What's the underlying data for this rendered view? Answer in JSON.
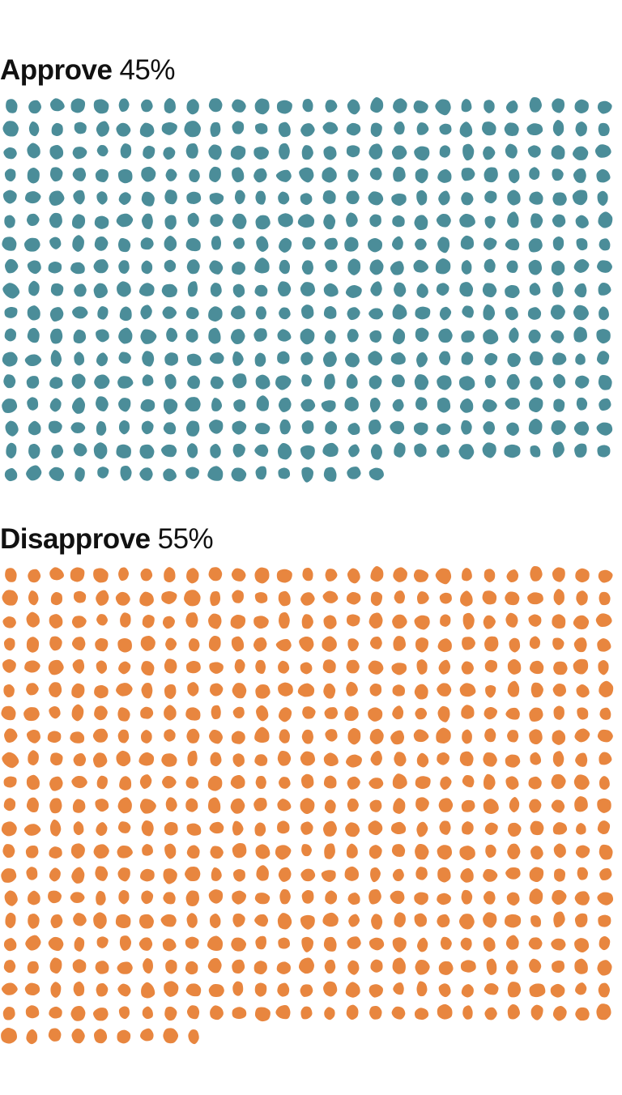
{
  "chart_data": {
    "type": "waffle",
    "groups": [
      {
        "label": "Approve",
        "percent_label": "45%",
        "value": 45,
        "dot_count": 449,
        "color": "#4b8d99"
      },
      {
        "label": "Disapprove",
        "percent_label": "55%",
        "value": 55,
        "dot_count": 549,
        "color": "#e8863f"
      }
    ],
    "columns": 27
  }
}
